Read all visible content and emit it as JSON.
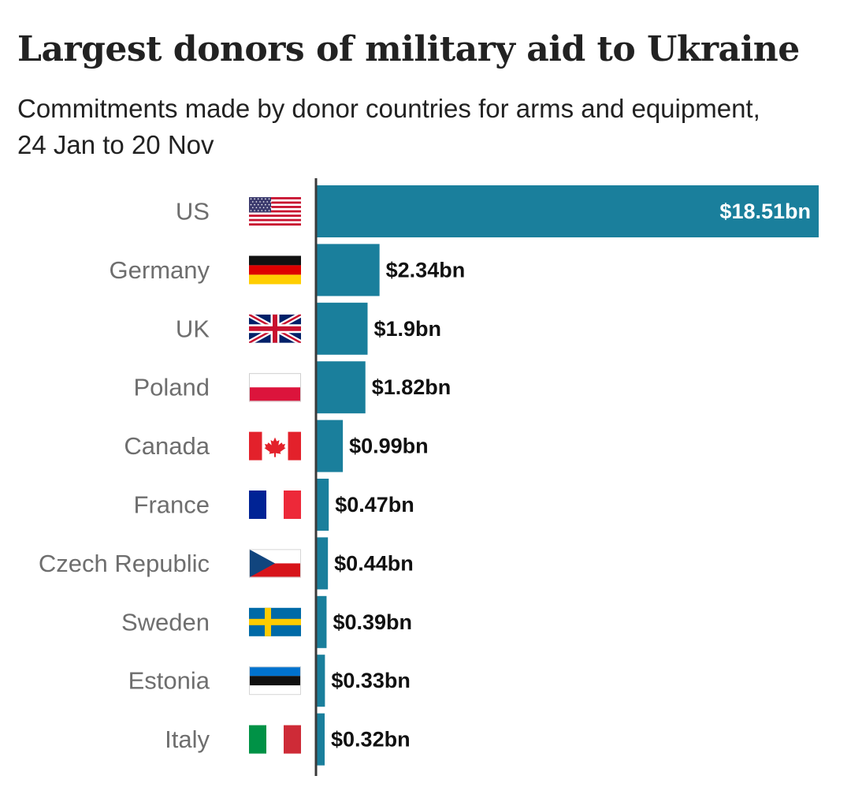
{
  "chart_data": {
    "type": "bar",
    "orientation": "horizontal",
    "title": "Largest donors of military aid to Ukraine",
    "subtitle": "Commitments made by donor countries for arms and equipment, 24 Jan to 20 Nov",
    "unit": "$bn",
    "categories": [
      "US",
      "Germany",
      "UK",
      "Poland",
      "Canada",
      "France",
      "Czech Republic",
      "Sweden",
      "Estonia",
      "Italy"
    ],
    "values": [
      18.51,
      2.34,
      1.9,
      1.82,
      0.99,
      0.47,
      0.44,
      0.39,
      0.33,
      0.32
    ],
    "value_labels": [
      "$18.51bn",
      "$2.34bn",
      "$1.9bn",
      "$1.82bn",
      "$0.99bn",
      "$0.47bn",
      "$0.44bn",
      "$0.39bn",
      "$0.33bn",
      "$0.32bn"
    ],
    "flag_icons": [
      "us-flag-icon",
      "germany-flag-icon",
      "uk-flag-icon",
      "poland-flag-icon",
      "canada-flag-icon",
      "france-flag-icon",
      "czech-republic-flag-icon",
      "sweden-flag-icon",
      "estonia-flag-icon",
      "italy-flag-icon"
    ],
    "grid": false,
    "legend": "none",
    "colors": {
      "bar": "#1a7f9c",
      "axis": "#3a3a3a",
      "category_label": "#6e6e6e",
      "value_label": "#111111",
      "value_label_inside": "#ffffff"
    }
  }
}
